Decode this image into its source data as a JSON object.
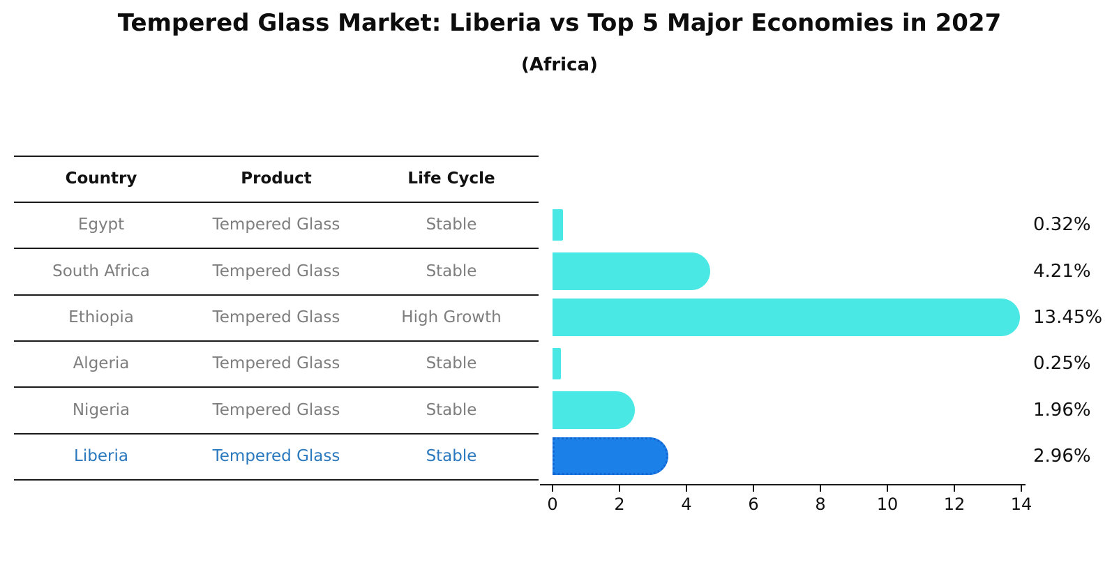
{
  "title": "Tempered Glass Market: Liberia vs Top 5 Major Economies in 2027",
  "subtitle": "(Africa)",
  "table": {
    "headers": [
      "Country",
      "Product",
      "Life Cycle"
    ]
  },
  "rows": [
    {
      "country": "Egypt",
      "product": "Tempered Glass",
      "life_cycle": "Stable",
      "value": 0.32,
      "label": "0.32%",
      "highlighted": false
    },
    {
      "country": "South Africa",
      "product": "Tempered Glass",
      "life_cycle": "Stable",
      "value": 4.21,
      "label": "4.21%",
      "highlighted": false
    },
    {
      "country": "Ethiopia",
      "product": "Tempered Glass",
      "life_cycle": "High Growth",
      "value": 13.45,
      "label": "13.45%",
      "highlighted": false
    },
    {
      "country": "Algeria",
      "product": "Tempered Glass",
      "life_cycle": "Stable",
      "value": 0.25,
      "label": "0.25%",
      "highlighted": false
    },
    {
      "country": "Nigeria",
      "product": "Tempered Glass",
      "life_cycle": "Stable",
      "value": 1.96,
      "label": "1.96%",
      "highlighted": false
    },
    {
      "country": "Liberia",
      "product": "Tempered Glass",
      "life_cycle": "Stable",
      "value": 2.96,
      "label": "2.96%",
      "highlighted": true
    }
  ],
  "colors": {
    "bar": "#4AE8E4",
    "highlight_bar": "#1B80E8",
    "highlight_border": "#1366D6",
    "highlight_text": "#2A78BD",
    "row_text": "#7E7E7E",
    "header_text": "#111111",
    "line": "#1a1a1a"
  },
  "chart_data": {
    "type": "bar",
    "orientation": "horizontal",
    "title": "Tempered Glass Market: Liberia vs Top 5 Major Economies in 2027",
    "subtitle": "(Africa)",
    "categories": [
      "Egypt",
      "South Africa",
      "Ethiopia",
      "Algeria",
      "Nigeria",
      "Liberia"
    ],
    "values": [
      0.32,
      4.21,
      13.45,
      0.25,
      1.96,
      2.96
    ],
    "value_labels": [
      "0.32%",
      "4.21%",
      "13.45%",
      "0.25%",
      "1.96%",
      "2.96%"
    ],
    "products": [
      "Tempered Glass",
      "Tempered Glass",
      "Tempered Glass",
      "Tempered Glass",
      "Tempered Glass",
      "Tempered Glass"
    ],
    "life_cycles": [
      "Stable",
      "Stable",
      "High Growth",
      "Stable",
      "Stable",
      "Stable"
    ],
    "xlabel": "",
    "ylabel": "",
    "xticks": [
      0,
      2,
      4,
      6,
      8,
      10,
      12,
      14
    ],
    "xlim": [
      0,
      14
    ],
    "grid": false,
    "legend": "none",
    "bar_color": "#4AE8E4",
    "highlight_category": "Liberia",
    "highlight_color": "#1B80E8"
  }
}
